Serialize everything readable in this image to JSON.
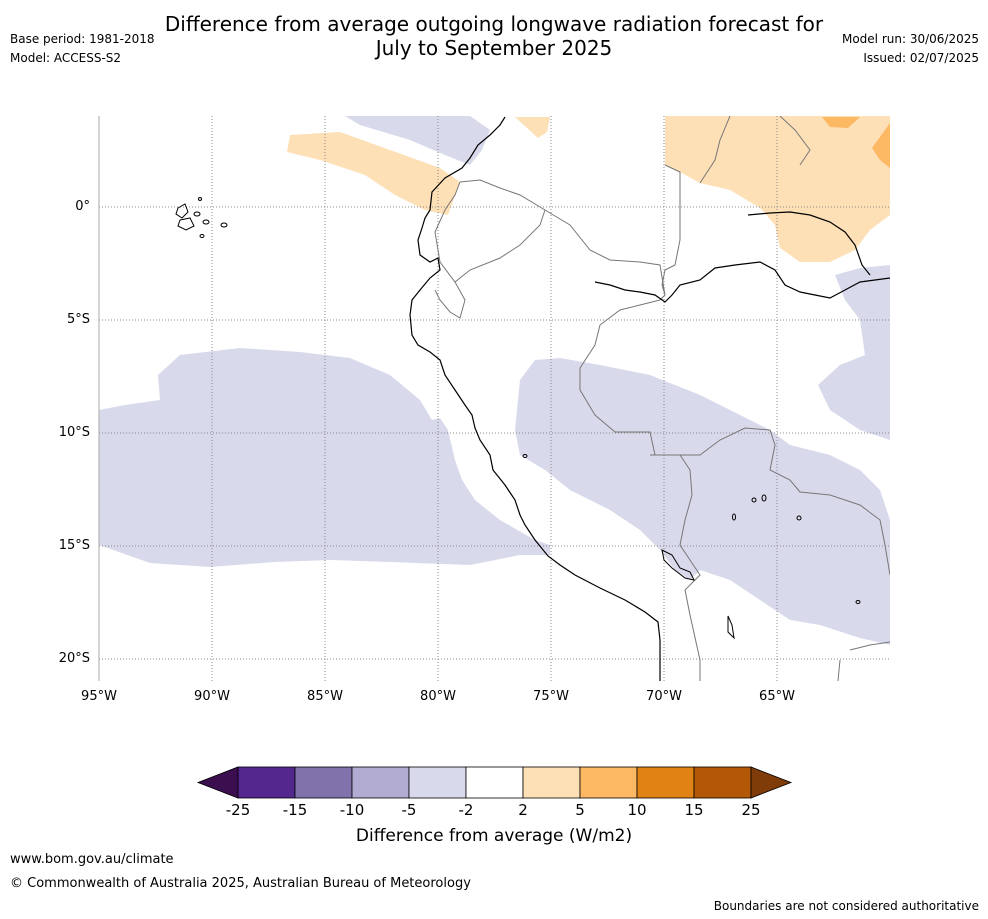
{
  "header": {
    "title_line1": "Difference from average outgoing longwave radiation forecast for",
    "title_line2": "July to September 2025",
    "base_period": "Base period: 1981-2018",
    "model": "Model: ACCESS-S2",
    "model_run": "Model run: 30/06/2025",
    "issued": "Issued: 02/07/2025"
  },
  "map": {
    "lat_labels": [
      "0°",
      "5°S",
      "10°S",
      "15°S",
      "20°S"
    ],
    "lon_labels": [
      "95°W",
      "90°W",
      "85°W",
      "80°W",
      "75°W",
      "70°W",
      "65°W"
    ]
  },
  "colorbar": {
    "ticks": [
      "-25",
      "-15",
      "-10",
      "-5",
      "-2",
      "2",
      "5",
      "10",
      "15",
      "25"
    ],
    "colors": [
      "#3b0f4f",
      "#54278f",
      "#8073ac",
      "#b2abd2",
      "#d8daeb",
      "#ffffff",
      "#fee0b6",
      "#fdb863",
      "#e08214",
      "#b35806",
      "#7f3b08"
    ],
    "label": "Difference from average (W/m2)"
  },
  "footer": {
    "website": "www.bom.gov.au/climate",
    "copyright": "© Commonwealth of Australia 2025, Australian Bureau of Meteorology",
    "disclaimer": "Boundaries are not considered authoritative"
  }
}
